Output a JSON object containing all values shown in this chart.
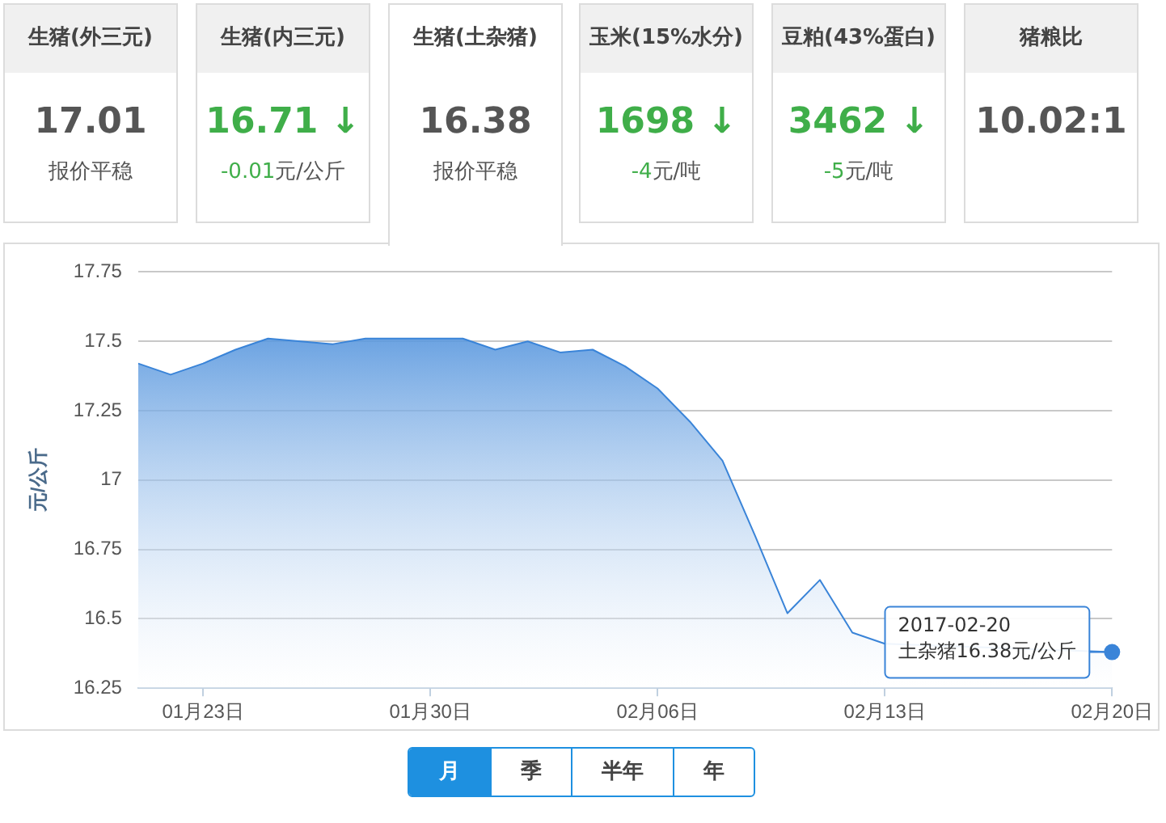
{
  "chart_data": [
    {
      "type": "other",
      "title": "生猪(外三元)",
      "annotations": [
        "17.01",
        "报价平稳"
      ],
      "color": "#555555"
    },
    {
      "type": "other",
      "title": "生猪(内三元)",
      "annotations": [
        "16.71 ↓",
        "-0.01元/公斤"
      ],
      "color": "#3fae49"
    },
    {
      "type": "other",
      "title": "生猪(土杂猪)",
      "annotations": [
        "16.38",
        "报价平稳"
      ],
      "color": "#555555"
    },
    {
      "type": "other",
      "title": "玉米(15%水分)",
      "annotations": [
        "1698 ↓",
        "-4元/吨"
      ],
      "color": "#3fae49"
    },
    {
      "type": "other",
      "title": "豆粕(43%蛋白)",
      "annotations": [
        "3462 ↓",
        "-5元/吨"
      ],
      "color": "#3fae49"
    },
    {
      "type": "other",
      "title": "猪粮比",
      "annotations": [
        "10.02:1"
      ],
      "color": "#555555"
    },
    {
      "type": "area",
      "ylabel": "元/公斤",
      "x": [
        "2017-01-21",
        "2017-01-22",
        "2017-01-23",
        "2017-01-24",
        "2017-01-25",
        "2017-01-26",
        "2017-01-27",
        "2017-01-28",
        "2017-01-29",
        "2017-01-30",
        "2017-01-31",
        "2017-02-01",
        "2017-02-02",
        "2017-02-03",
        "2017-02-04",
        "2017-02-05",
        "2017-02-06",
        "2017-02-07",
        "2017-02-08",
        "2017-02-09",
        "2017-02-10",
        "2017-02-11",
        "2017-02-12",
        "2017-02-13",
        "2017-02-14",
        "2017-02-15",
        "2017-02-16",
        "2017-02-17",
        "2017-02-18",
        "2017-02-19",
        "2017-02-20"
      ],
      "series": [
        {
          "color": "#3a84d8",
          "values": [
            17.42,
            17.38,
            17.42,
            17.47,
            17.51,
            17.5,
            17.49,
            17.51,
            17.51,
            17.51,
            17.51,
            17.47,
            17.5,
            17.46,
            17.47,
            17.41,
            17.33,
            17.21,
            17.07,
            16.8,
            16.52,
            16.64,
            16.45,
            16.41,
            null,
            null,
            null,
            null,
            null,
            null,
            16.38
          ]
        }
      ],
      "xlim": [
        "2017-01-21",
        "2017-02-20"
      ],
      "xticks": [
        {
          "value": "2017-01-23",
          "label": "01月23日"
        },
        {
          "value": "2017-01-30",
          "label": "01月30日"
        },
        {
          "value": "2017-02-06",
          "label": "02月06日"
        },
        {
          "value": "2017-02-13",
          "label": "02月13日"
        },
        {
          "value": "2017-02-20",
          "label": "02月20日"
        }
      ],
      "ylim": [
        16.25,
        17.75
      ],
      "yticks": [
        16.25,
        16.5,
        16.75,
        17,
        17.25,
        17.5,
        17.75
      ],
      "grid": "y",
      "legend": false,
      "marker": "none",
      "line_style": "solid",
      "annotations": [
        {
          "text": "2017-02-20\n土杂猪16.38元/公斤",
          "x": "2017-02-20",
          "y": 16.38
        },
        "月",
        "季",
        "半年",
        "年"
      ]
    }
  ]
}
